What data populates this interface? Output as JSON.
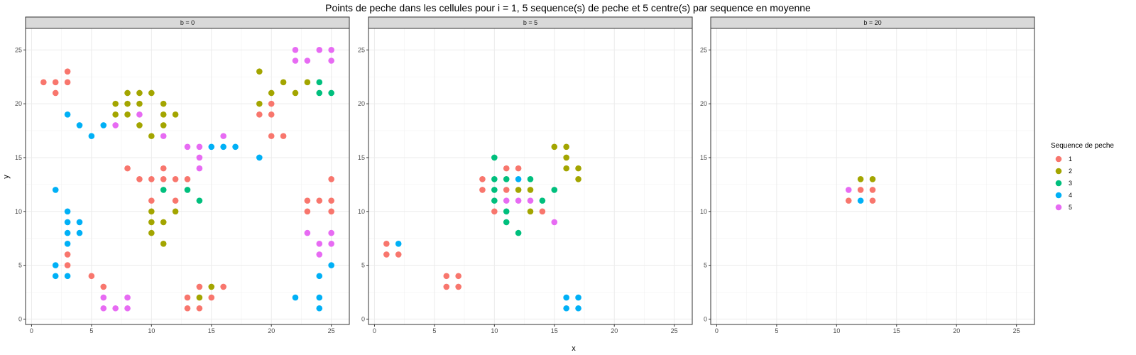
{
  "chart_data": {
    "type": "scatter",
    "title": "Points de peche dans les cellules pour i = 1, 5 sequence(s) de peche et 5 centre(s) par sequence en moyenne",
    "xlabel": "x",
    "ylabel": "y",
    "xlim": [
      -0.5,
      26.5
    ],
    "ylim": [
      -0.5,
      27
    ],
    "x_ticks": [
      0,
      5,
      10,
      15,
      20,
      25
    ],
    "y_ticks": [
      0,
      5,
      10,
      15,
      20,
      25
    ],
    "grid": true,
    "legend": {
      "title": "Sequence de peche",
      "position": "right",
      "entries": [
        {
          "label": "1",
          "color": "#F8766D"
        },
        {
          "label": "2",
          "color": "#A3A500"
        },
        {
          "label": "3",
          "color": "#00BF7D"
        },
        {
          "label": "4",
          "color": "#00B0F6"
        },
        {
          "label": "5",
          "color": "#E76BF3"
        }
      ]
    },
    "facets": [
      {
        "label": "b = 0",
        "series": [
          {
            "name": "1",
            "points": [
              [
                1,
                22
              ],
              [
                2,
                22
              ],
              [
                3,
                22
              ],
              [
                2,
                21
              ],
              [
                3,
                23
              ],
              [
                3,
                6
              ],
              [
                3,
                5
              ],
              [
                5,
                4
              ],
              [
                6,
                3
              ],
              [
                8,
                14
              ],
              [
                9,
                13
              ],
              [
                10,
                13
              ],
              [
                11,
                13
              ],
              [
                12,
                13
              ],
              [
                13,
                13
              ],
              [
                11,
                14
              ],
              [
                10,
                11
              ],
              [
                12,
                11
              ],
              [
                13,
                2
              ],
              [
                13,
                1
              ],
              [
                14,
                1
              ],
              [
                14,
                3
              ],
              [
                15,
                2
              ],
              [
                16,
                3
              ],
              [
                19,
                19
              ],
              [
                20,
                19
              ],
              [
                20,
                20
              ],
              [
                20,
                17
              ],
              [
                21,
                17
              ],
              [
                23,
                11
              ],
              [
                24,
                11
              ],
              [
                25,
                11
              ],
              [
                25,
                13
              ],
              [
                23,
                10
              ],
              [
                25,
                10
              ]
            ]
          },
          {
            "name": "2",
            "points": [
              [
                7,
                20
              ],
              [
                8,
                20
              ],
              [
                8,
                21
              ],
              [
                9,
                21
              ],
              [
                10,
                21
              ],
              [
                7,
                19
              ],
              [
                8,
                19
              ],
              [
                9,
                20
              ],
              [
                11,
                20
              ],
              [
                11,
                19
              ],
              [
                12,
                19
              ],
              [
                9,
                18
              ],
              [
                11,
                18
              ],
              [
                10,
                17
              ],
              [
                10,
                10
              ],
              [
                10,
                9
              ],
              [
                11,
                9
              ],
              [
                12,
                10
              ],
              [
                10,
                8
              ],
              [
                11,
                7
              ],
              [
                14,
                2
              ],
              [
                15,
                3
              ],
              [
                19,
                23
              ],
              [
                19,
                20
              ],
              [
                20,
                21
              ],
              [
                21,
                22
              ],
              [
                22,
                21
              ],
              [
                23,
                22
              ]
            ]
          },
          {
            "name": "3",
            "points": [
              [
                11,
                12
              ],
              [
                13,
                12
              ],
              [
                14,
                11
              ],
              [
                24,
                22
              ],
              [
                24,
                21
              ],
              [
                25,
                21
              ]
            ]
          },
          {
            "name": "4",
            "points": [
              [
                3,
                19
              ],
              [
                4,
                18
              ],
              [
                5,
                17
              ],
              [
                6,
                18
              ],
              [
                2,
                12
              ],
              [
                3,
                10
              ],
              [
                3,
                9
              ],
              [
                4,
                9
              ],
              [
                3,
                8
              ],
              [
                4,
                8
              ],
              [
                3,
                7
              ],
              [
                2,
                5
              ],
              [
                2,
                4
              ],
              [
                3,
                4
              ],
              [
                15,
                16
              ],
              [
                16,
                16
              ],
              [
                17,
                16
              ],
              [
                19,
                15
              ],
              [
                22,
                2
              ],
              [
                24,
                2
              ],
              [
                24,
                1
              ],
              [
                24,
                4
              ],
              [
                25,
                5
              ]
            ]
          },
          {
            "name": "5",
            "points": [
              [
                7,
                18
              ],
              [
                9,
                19
              ],
              [
                11,
                17
              ],
              [
                13,
                16
              ],
              [
                14,
                16
              ],
              [
                14,
                15
              ],
              [
                14,
                14
              ],
              [
                16,
                17
              ],
              [
                6,
                2
              ],
              [
                8,
                2
              ],
              [
                6,
                1
              ],
              [
                7,
                1
              ],
              [
                8,
                1
              ],
              [
                22,
                25
              ],
              [
                24,
                25
              ],
              [
                25,
                25
              ],
              [
                22,
                24
              ],
              [
                23,
                24
              ],
              [
                25,
                24
              ],
              [
                23,
                8
              ],
              [
                25,
                8
              ],
              [
                24,
                7
              ],
              [
                25,
                7
              ],
              [
                24,
                6
              ]
            ]
          }
        ]
      },
      {
        "label": "b = 5",
        "series": [
          {
            "name": "1",
            "points": [
              [
                1,
                7
              ],
              [
                1,
                6
              ],
              [
                2,
                6
              ],
              [
                6,
                4
              ],
              [
                7,
                4
              ],
              [
                6,
                3
              ],
              [
                7,
                3
              ],
              [
                9,
                13
              ],
              [
                9,
                12
              ],
              [
                11,
                14
              ],
              [
                12,
                14
              ],
              [
                11,
                12
              ],
              [
                10,
                10
              ],
              [
                14,
                10
              ]
            ]
          },
          {
            "name": "2",
            "points": [
              [
                12,
                12
              ],
              [
                13,
                12
              ],
              [
                13,
                10
              ],
              [
                15,
                16
              ],
              [
                16,
                16
              ],
              [
                16,
                15
              ],
              [
                16,
                14
              ],
              [
                17,
                14
              ],
              [
                17,
                13
              ]
            ]
          },
          {
            "name": "3",
            "points": [
              [
                10,
                15
              ],
              [
                10,
                13
              ],
              [
                11,
                13
              ],
              [
                13,
                13
              ],
              [
                10,
                12
              ],
              [
                10,
                11
              ],
              [
                14,
                11
              ],
              [
                15,
                12
              ],
              [
                11,
                10
              ],
              [
                11,
                9
              ],
              [
                12,
                8
              ]
            ]
          },
          {
            "name": "4",
            "points": [
              [
                2,
                7
              ],
              [
                12,
                13
              ],
              [
                16,
                2
              ],
              [
                17,
                2
              ],
              [
                16,
                1
              ],
              [
                17,
                1
              ]
            ]
          },
          {
            "name": "5",
            "points": [
              [
                11,
                11
              ],
              [
                12,
                11
              ],
              [
                13,
                11
              ],
              [
                15,
                9
              ]
            ]
          }
        ]
      },
      {
        "label": "b = 20",
        "series": [
          {
            "name": "1",
            "points": [
              [
                12,
                12
              ],
              [
                13,
                12
              ],
              [
                11,
                11
              ],
              [
                13,
                11
              ]
            ]
          },
          {
            "name": "2",
            "points": [
              [
                12,
                13
              ],
              [
                13,
                13
              ]
            ]
          },
          {
            "name": "4",
            "points": [
              [
                12,
                11
              ]
            ]
          },
          {
            "name": "5",
            "points": [
              [
                11,
                12
              ]
            ]
          }
        ]
      }
    ]
  }
}
